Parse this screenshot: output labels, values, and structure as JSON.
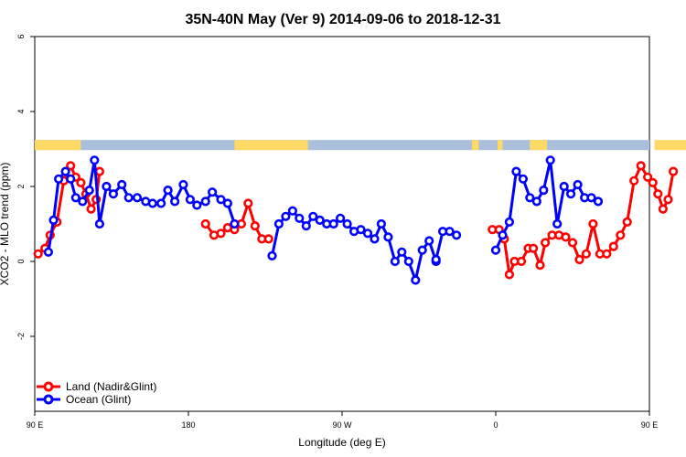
{
  "chart_data": {
    "type": "line",
    "title": "35N-40N May (Ver 9)   2014-09-06 to 2018-12-31",
    "xlabel": "Longitude (deg E)",
    "ylabel": "XCO2 - MLO trend (ppm)",
    "xlim": [
      90,
      450
    ],
    "ylim": [
      -4,
      6
    ],
    "x_ticks": [
      {
        "value": 90,
        "label": "90 E"
      },
      {
        "value": 180,
        "label": "180"
      },
      {
        "value": 270,
        "label": "90 W"
      },
      {
        "value": 360,
        "label": "0"
      },
      {
        "value": 450,
        "label": "90 E"
      },
      {
        "value": 540,
        "label": "180"
      }
    ],
    "y_ticks": [
      {
        "value": -2,
        "label": "-2"
      },
      {
        "value": 0,
        "label": "0"
      },
      {
        "value": 2,
        "label": "2"
      },
      {
        "value": 4,
        "label": "4"
      },
      {
        "value": 6,
        "label": "6"
      }
    ],
    "land_ocean_band": {
      "y_range": [
        2.97,
        3.24
      ],
      "land_color": "#FFD966",
      "ocean_color": "#A9BFDC",
      "land_segments": [
        [
          90,
          117
        ],
        [
          207,
          250
        ],
        [
          346,
          350
        ],
        [
          361,
          364
        ],
        [
          380,
          390
        ],
        [
          453,
          477
        ],
        [
          507,
          517
        ]
      ]
    },
    "series": [
      {
        "name": "Land (Nadir&Glint)",
        "color": "#FF0000",
        "segments": [
          [
            [
              92,
              0.2
            ],
            [
              96,
              0.35
            ],
            [
              99,
              0.7
            ],
            [
              103,
              1.05
            ],
            [
              107,
              2.15
            ],
            [
              111,
              2.55
            ],
            [
              114,
              2.25
            ],
            [
              117,
              2.1
            ],
            [
              120,
              1.8
            ],
            [
              123,
              1.4
            ],
            [
              126,
              1.65
            ],
            [
              128,
              2.4
            ]
          ],
          [
            [
              190,
              1.0
            ],
            [
              195,
              0.7
            ],
            [
              199,
              0.75
            ],
            [
              203,
              0.9
            ],
            [
              207,
              0.85
            ],
            [
              211,
              1.0
            ],
            [
              215,
              1.55
            ],
            [
              219,
              0.95
            ],
            [
              223,
              0.6
            ],
            [
              227,
              0.6
            ]
          ],
          [
            [
              358,
              0.85
            ],
            [
              362,
              0.85
            ],
            [
              365,
              0.6
            ],
            [
              368,
              -0.35
            ],
            [
              371,
              0.0
            ],
            [
              375,
              0.0
            ],
            [
              379,
              0.35
            ],
            [
              382,
              0.35
            ],
            [
              386,
              -0.1
            ],
            [
              389,
              0.5
            ],
            [
              393,
              0.7
            ],
            [
              397,
              0.7
            ],
            [
              401,
              0.65
            ],
            [
              405,
              0.5
            ],
            [
              409,
              0.05
            ],
            [
              413,
              0.2
            ],
            [
              417,
              1.0
            ],
            [
              421,
              0.2
            ],
            [
              425,
              0.2
            ],
            [
              429,
              0.4
            ],
            [
              433,
              0.7
            ],
            [
              437,
              1.05
            ],
            [
              441,
              2.15
            ],
            [
              445,
              2.55
            ],
            [
              449,
              2.25
            ],
            [
              452,
              2.1
            ],
            [
              455,
              1.8
            ],
            [
              458,
              1.4
            ],
            [
              461,
              1.65
            ],
            [
              464,
              2.4
            ]
          ]
        ]
      },
      {
        "name": "Ocean (Glint)",
        "color": "#0000FF",
        "segments": [
          [
            [
              98,
              0.25
            ],
            [
              101,
              1.1
            ],
            [
              104,
              2.2
            ],
            [
              108,
              2.4
            ],
            [
              111,
              2.2
            ],
            [
              114,
              1.7
            ],
            [
              118,
              1.6
            ],
            [
              122,
              1.9
            ],
            [
              125,
              2.7
            ],
            [
              128,
              1.0
            ],
            [
              132,
              2.0
            ],
            [
              136,
              1.8
            ],
            [
              141,
              2.05
            ],
            [
              145,
              1.7
            ],
            [
              150,
              1.7
            ],
            [
              155,
              1.6
            ],
            [
              159,
              1.55
            ],
            [
              164,
              1.55
            ],
            [
              168,
              1.9
            ],
            [
              172,
              1.6
            ],
            [
              177,
              2.05
            ],
            [
              181,
              1.65
            ],
            [
              185,
              1.5
            ],
            [
              190,
              1.6
            ],
            [
              194,
              1.85
            ],
            [
              199,
              1.65
            ],
            [
              203,
              1.55
            ],
            [
              207,
              1.0
            ]
          ],
          [
            [
              229,
              0.15
            ],
            [
              233,
              1.0
            ],
            [
              237,
              1.2
            ],
            [
              241,
              1.35
            ],
            [
              245,
              1.15
            ],
            [
              249,
              0.95
            ],
            [
              253,
              1.2
            ],
            [
              257,
              1.1
            ],
            [
              261,
              1.0
            ],
            [
              265,
              1.0
            ],
            [
              269,
              1.15
            ],
            [
              273,
              1.0
            ],
            [
              277,
              0.8
            ],
            [
              281,
              0.85
            ],
            [
              285,
              0.75
            ],
            [
              289,
              0.6
            ],
            [
              293,
              1.0
            ],
            [
              297,
              0.65
            ],
            [
              301,
              0.0
            ],
            [
              305,
              0.25
            ],
            [
              309,
              0.0
            ],
            [
              313,
              -0.5
            ],
            [
              317,
              0.3
            ],
            [
              321,
              0.55
            ],
            [
              325,
              0.0
            ]
          ],
          [
            [
              325,
              0.05
            ],
            [
              329,
              0.8
            ],
            [
              333,
              0.8
            ],
            [
              337,
              0.7
            ]
          ],
          [
            [
              360,
              0.3
            ],
            [
              364,
              0.7
            ],
            [
              368,
              1.05
            ],
            [
              372,
              2.4
            ],
            [
              376,
              2.2
            ],
            [
              380,
              1.7
            ],
            [
              384,
              1.6
            ],
            [
              388,
              1.9
            ],
            [
              392,
              2.7
            ],
            [
              396,
              1.0
            ],
            [
              400,
              2.0
            ],
            [
              404,
              1.8
            ],
            [
              408,
              2.05
            ],
            [
              412,
              1.7
            ],
            [
              416,
              1.7
            ],
            [
              420,
              1.6
            ]
          ]
        ]
      }
    ],
    "legend": {
      "position": "bottom-left",
      "entries": [
        "Land (Nadir&Glint)",
        "Ocean (Glint)"
      ]
    }
  }
}
